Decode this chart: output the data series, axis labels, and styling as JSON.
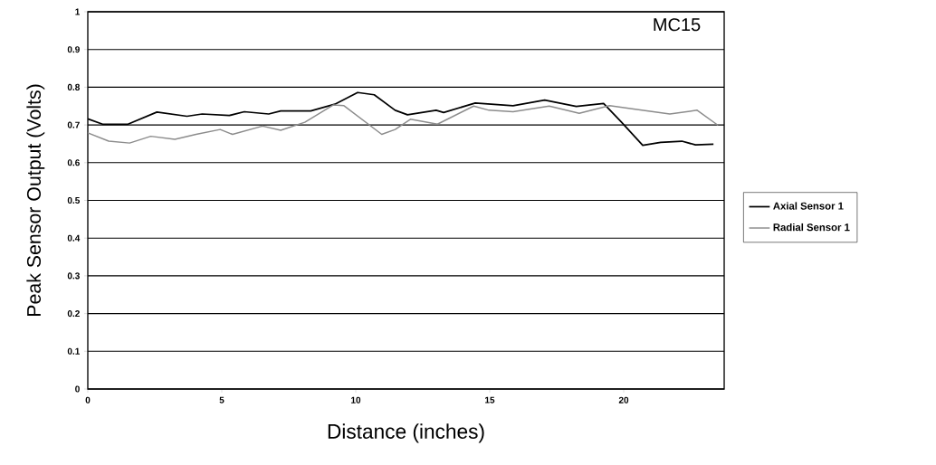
{
  "chart_data": {
    "type": "line",
    "title": "MC15",
    "xlabel": "Distance (inches)",
    "ylabel": "Peak Sensor Output (Volts)",
    "xlim": [
      0,
      23.75
    ],
    "xticks": [
      0,
      5,
      10,
      15,
      20
    ],
    "ylim": [
      0,
      1
    ],
    "yticks": [
      0,
      0.1,
      0.2,
      0.3,
      0.4,
      0.5,
      0.6,
      0.7,
      0.8,
      0.9,
      1
    ],
    "grid": "y",
    "legend": "right",
    "marker": "none",
    "series": [
      {
        "name": "Axial Sensor 1",
        "color": "#000000",
        "line_style": "solid",
        "x": [
          0,
          0.55,
          1.5,
          2.58,
          3.7,
          4.27,
          5.28,
          5.84,
          6.75,
          7.2,
          8.32,
          9.22,
          10.07,
          10.69,
          11.47,
          11.93,
          13.0,
          13.28,
          14.46,
          15.87,
          17.05,
          18.23,
          19.25,
          19.92,
          20.71,
          21.38,
          22.17,
          22.68,
          23.35
        ],
        "values": [
          0.716,
          0.702,
          0.702,
          0.734,
          0.723,
          0.729,
          0.725,
          0.735,
          0.729,
          0.737,
          0.737,
          0.755,
          0.786,
          0.78,
          0.739,
          0.727,
          0.739,
          0.733,
          0.758,
          0.751,
          0.766,
          0.749,
          0.757,
          0.707,
          0.646,
          0.654,
          0.657,
          0.647,
          0.649
        ]
      },
      {
        "name": "Radial Sensor 1",
        "color": "#8c8c8c",
        "line_style": "solid",
        "x": [
          0,
          0.78,
          1.56,
          2.35,
          3.25,
          4.04,
          4.94,
          5.4,
          6.52,
          7.2,
          8.1,
          9.17,
          9.56,
          10.97,
          11.47,
          12.04,
          13.05,
          14.4,
          14.97,
          15.87,
          17.22,
          18.34,
          19.47,
          20.37,
          21.72,
          22.74,
          23.52
        ],
        "values": [
          0.679,
          0.657,
          0.652,
          0.67,
          0.662,
          0.675,
          0.688,
          0.675,
          0.697,
          0.686,
          0.707,
          0.753,
          0.751,
          0.675,
          0.688,
          0.715,
          0.702,
          0.75,
          0.739,
          0.735,
          0.75,
          0.731,
          0.751,
          0.742,
          0.729,
          0.739,
          0.699
        ]
      }
    ]
  }
}
